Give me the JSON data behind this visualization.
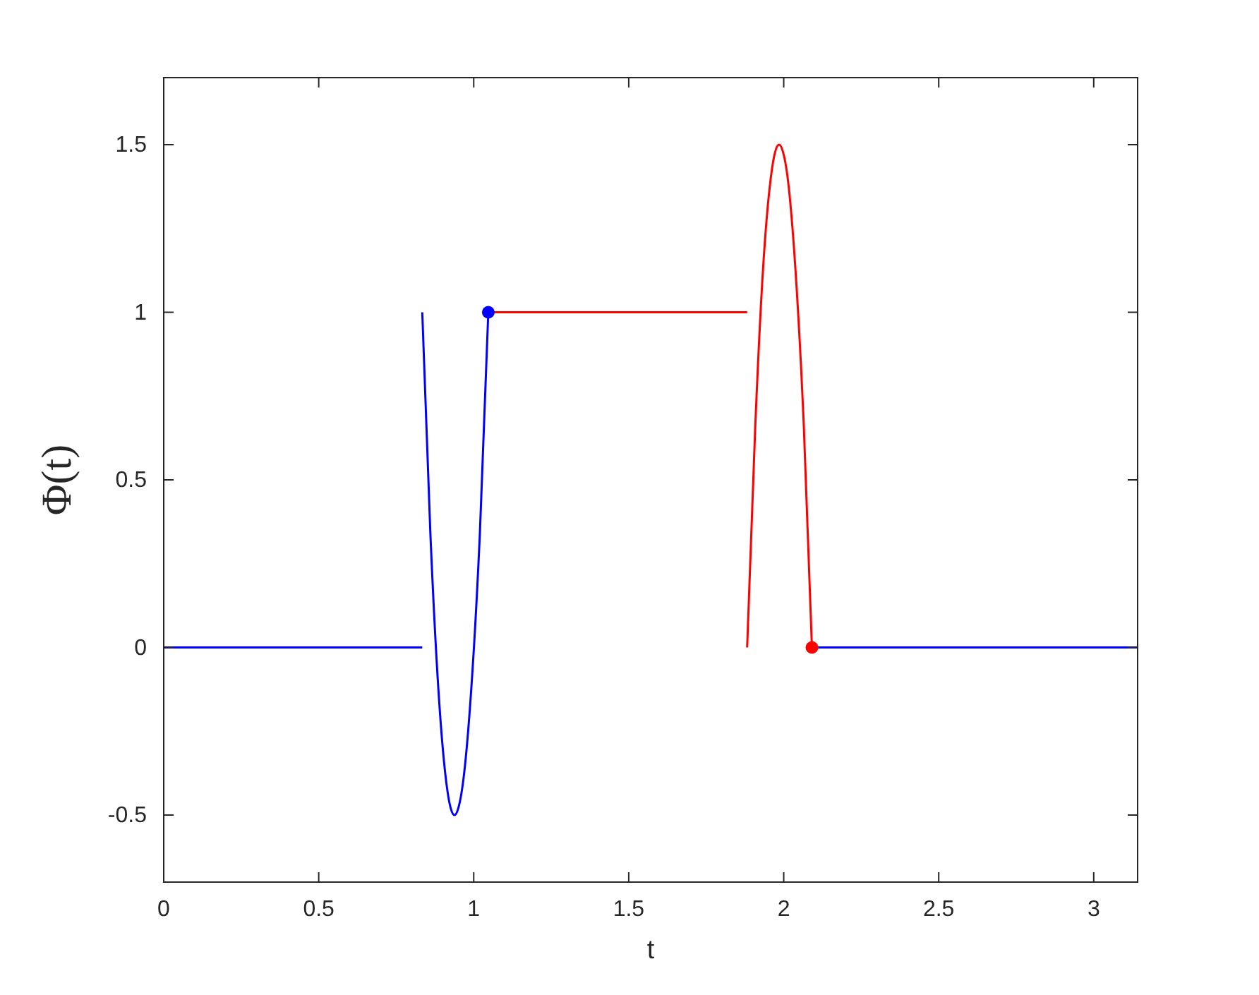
{
  "chart_data": {
    "type": "line",
    "xlabel": "t",
    "ylabel": "Φ(t)",
    "xlim": [
      0,
      3.14159
    ],
    "ylim": [
      -0.7,
      1.7
    ],
    "xticks": [
      0,
      0.5,
      1,
      1.5,
      2,
      2.5,
      3
    ],
    "yticks": [
      -0.5,
      0,
      0.5,
      1,
      1.5
    ],
    "grid": false,
    "marker": "none",
    "line_style": "solid",
    "series": [
      {
        "color": "#0000ff",
        "x": [
          0,
          0.834
        ],
        "values": [
          0,
          0
        ]
      },
      {
        "color": "#0000ff",
        "x": [
          0.834,
          0.86,
          0.886,
          0.912,
          0.925,
          0.938,
          0.951,
          0.965,
          0.992,
          1.02,
          1.047
        ],
        "values": [
          1,
          0.344,
          -0.125,
          -0.406,
          -0.477,
          -0.5,
          -0.477,
          -0.406,
          -0.125,
          0.344,
          1
        ]
      },
      {
        "color": "#0000ff",
        "x": [
          2.091,
          3.14159
        ],
        "values": [
          0,
          0
        ]
      },
      {
        "color": "#ff0000",
        "x": [
          1.047,
          1.882
        ],
        "values": [
          1,
          1
        ]
      },
      {
        "color": "#ff0000",
        "x": [
          1.882,
          1.908,
          1.933,
          1.959,
          1.972,
          1.985,
          1.998,
          2.012,
          2.038,
          2.065,
          2.091
        ],
        "values": [
          0,
          0.656,
          1.125,
          1.406,
          1.477,
          1.5,
          1.477,
          1.406,
          1.125,
          0.656,
          0
        ]
      },
      {
        "type": "scatter",
        "marker": "circle",
        "color": "#0000ff",
        "x": [
          1.047
        ],
        "values": [
          1
        ]
      },
      {
        "type": "scatter",
        "marker": "circle",
        "color": "#ff0000",
        "x": [
          2.091
        ],
        "values": [
          0
        ]
      }
    ]
  }
}
